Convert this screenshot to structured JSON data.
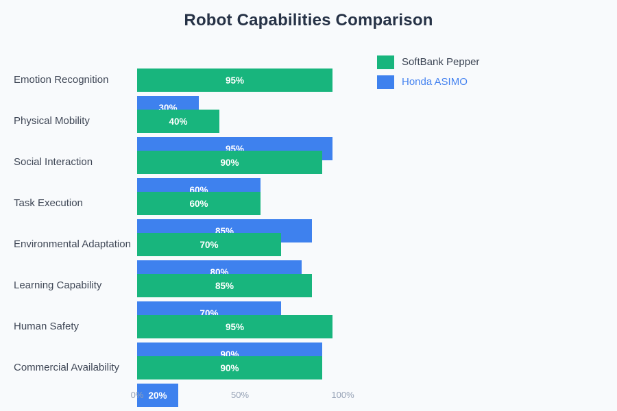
{
  "title": "Robot Capabilities Comparison",
  "legend": {
    "position": "top-right",
    "items": [
      {
        "label": "SoftBank Pepper",
        "swatch_color": "#18b57d",
        "label_color": "#3a4352"
      },
      {
        "label": "Honda ASIMO",
        "swatch_color": "#3e81ee",
        "label_color": "#4583f0"
      }
    ]
  },
  "x_axis": {
    "tick_labels": [
      "0%",
      "50%",
      "100%"
    ],
    "tick_values": [
      0,
      50,
      100
    ]
  },
  "chart_data": {
    "type": "bar",
    "orientation": "horizontal",
    "title": "Robot Capabilities Comparison",
    "categories": [
      "Emotion Recognition",
      "Physical Mobility",
      "Social Interaction",
      "Task Execution",
      "Environmental Adaptation",
      "Learning Capability",
      "Human Safety",
      "Commercial Availability"
    ],
    "series": [
      {
        "name": "SoftBank Pepper",
        "color": "#18b57d",
        "values": [
          95,
          40,
          90,
          60,
          70,
          85,
          95,
          90
        ],
        "value_labels": [
          "95%",
          "40%",
          "90%",
          "60%",
          "70%",
          "85%",
          "95%",
          "90%"
        ]
      },
      {
        "name": "Honda ASIMO",
        "color": "#3e81ee",
        "values": [
          30,
          95,
          60,
          85,
          80,
          70,
          90,
          20
        ],
        "value_labels": [
          "30%",
          "95%",
          "60%",
          "85%",
          "80%",
          "70%",
          "90%",
          "20%"
        ]
      }
    ],
    "x_range": [
      0,
      100
    ],
    "x_tick_labels": [
      "0%",
      "50%",
      "100%"
    ],
    "grid": false,
    "legend_position": "top-right",
    "value_label_position": "inside-center",
    "colors": {
      "background": "#f8fafc",
      "title": "#263246",
      "category_label": "#3f4756",
      "tick_label": "#95a1b5",
      "bar_value_label": "#ffffff"
    }
  }
}
